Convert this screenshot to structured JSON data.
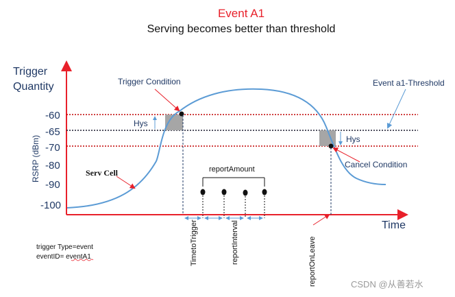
{
  "title": "Event A1",
  "subtitle": "Serving becomes better than threshold",
  "y_axis": {
    "label_line1": "Trigger",
    "label_line2": "Quantity",
    "unit_label": "RSRP (dBm)",
    "ticks": [
      "-60",
      "-65",
      "-70",
      "-80",
      "-90",
      "-100"
    ]
  },
  "x_axis": {
    "label": "Time"
  },
  "annotations": {
    "trigger_condition": "Trigger Condition",
    "event_threshold": "Event a1-Threshold",
    "hys_left": "Hys",
    "hys_right": "Hys",
    "serv_cell": "Serv Cell",
    "report_amount": "reportAmount",
    "cancel_condition": "Cancel Condition",
    "time_to_trigger": "TimetoTrigger",
    "report_interval": "reportInterval",
    "report_on_leave": "reportOnLeave"
  },
  "config_text": {
    "line1": "trigger Type=event",
    "line2": "eventID= eventA1"
  },
  "watermark": "CSDN @从善若水",
  "colors": {
    "title_red": "#e8202a",
    "axis_red": "#e8202a",
    "curve_blue": "#5b9bd5",
    "threshold_black": "#1a1a2e",
    "hys_gray": "#a6a6a6"
  }
}
